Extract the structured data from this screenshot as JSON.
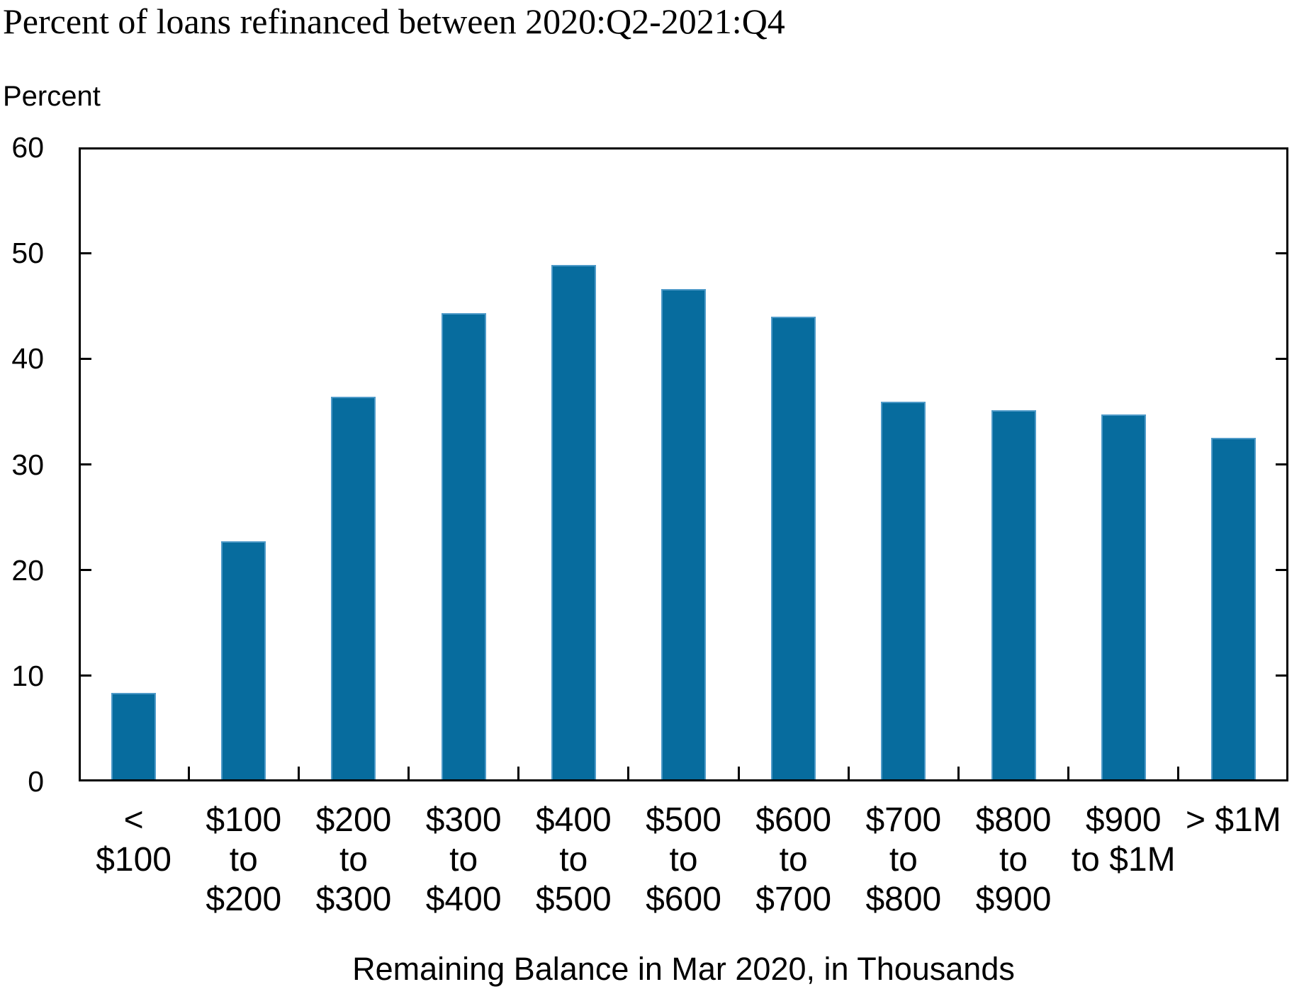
{
  "title": "Percent of loans refinanced between 2020:Q2-2021:Q4",
  "y_axis_unit": "Percent",
  "chart_data": {
    "type": "bar",
    "title": "Percent of loans refinanced between 2020:Q2-2021:Q4",
    "xlabel": "Remaining Balance in Mar 2020, in Thousands",
    "ylabel": "Percent",
    "ylim": [
      0,
      60
    ],
    "yticks": [
      0,
      10,
      20,
      30,
      40,
      50,
      60
    ],
    "grid": false,
    "legend_position": "none",
    "bar_color": "#076C9E",
    "bar_edge_color": "#4E9AC8",
    "axis_color": "#000000",
    "categories": [
      "< $100",
      "$100 to $200",
      "$200 to $300",
      "$300 to $400",
      "$400 to $500",
      "$500 to $600",
      "$600 to $700",
      "$700 to $800",
      "$800 to $900",
      "$900 to $1M",
      "> $1M"
    ],
    "category_label_lines": [
      [
        "<",
        "$100"
      ],
      [
        "$100",
        "to",
        "$200"
      ],
      [
        "$200",
        "to",
        "$300"
      ],
      [
        "$300",
        "to",
        "$400"
      ],
      [
        "$400",
        "to",
        "$500"
      ],
      [
        "$500",
        "to",
        "$600"
      ],
      [
        "$600",
        "to",
        "$700"
      ],
      [
        "$700",
        "to",
        "$800"
      ],
      [
        "$800",
        "to",
        "$900"
      ],
      [
        "$900",
        "to $1M"
      ],
      [
        "> $1M"
      ]
    ],
    "values": [
      8.2,
      22.5,
      36.2,
      44.1,
      48.7,
      46.4,
      43.8,
      35.7,
      34.9,
      34.5,
      32.3
    ]
  }
}
